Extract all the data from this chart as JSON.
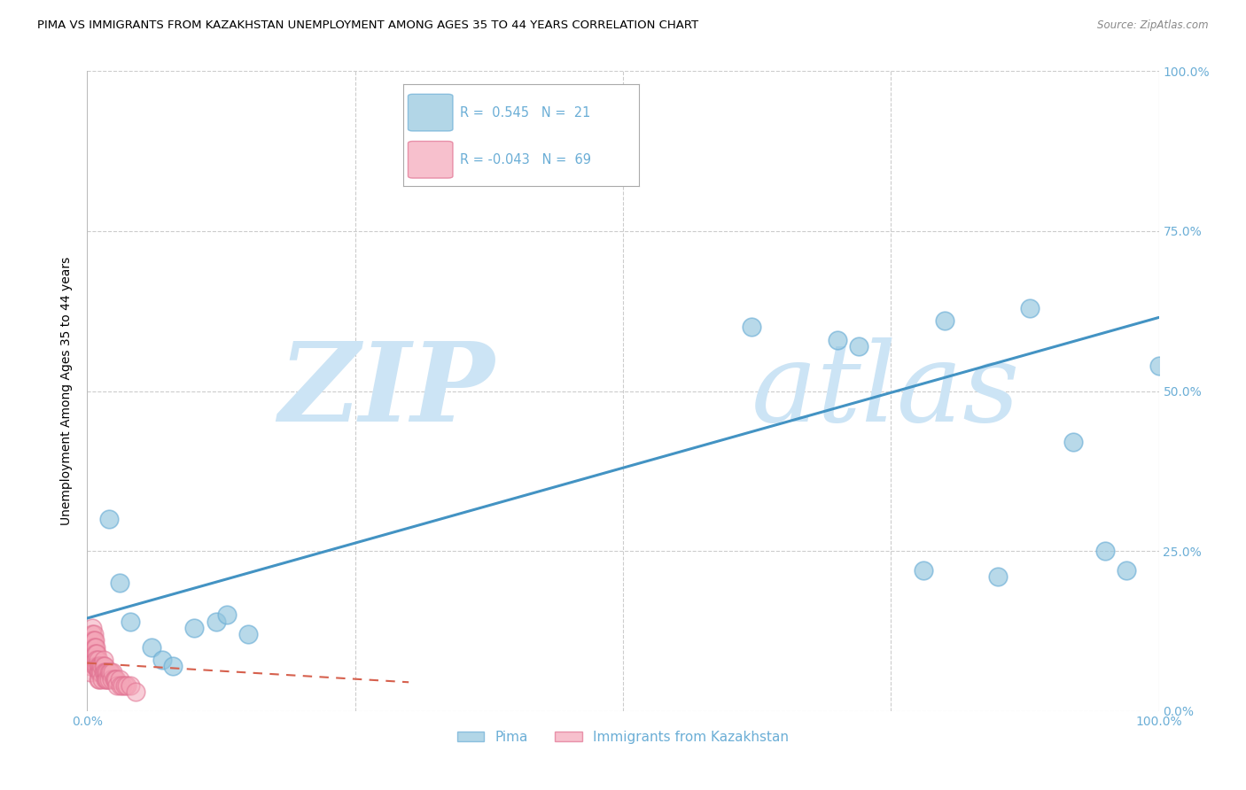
{
  "title": "PIMA VS IMMIGRANTS FROM KAZAKHSTAN UNEMPLOYMENT AMONG AGES 35 TO 44 YEARS CORRELATION CHART",
  "source": "Source: ZipAtlas.com",
  "ylabel": "Unemployment Among Ages 35 to 44 years",
  "xlim": [
    0,
    1.0
  ],
  "ylim": [
    0,
    1.0
  ],
  "grid_ticks": [
    0.25,
    0.5,
    0.75
  ],
  "xtick_ends": [
    0.0,
    1.0
  ],
  "xticklabels_ends": [
    "0.0%",
    "100.0%"
  ],
  "yticks_right": [
    0.25,
    0.5,
    0.75,
    1.0
  ],
  "yticklabels_right": [
    "25.0%",
    "50.0%",
    "75.0%",
    "100.0%"
  ],
  "pima_x": [
    0.02,
    0.03,
    0.04,
    0.06,
    0.07,
    0.08,
    0.1,
    0.12,
    0.13,
    0.15,
    0.62,
    0.7,
    0.72,
    0.78,
    0.8,
    0.85,
    0.88,
    0.92,
    0.95,
    0.97,
    1.0
  ],
  "pima_y": [
    0.3,
    0.2,
    0.14,
    0.1,
    0.08,
    0.07,
    0.13,
    0.14,
    0.15,
    0.12,
    0.6,
    0.58,
    0.57,
    0.22,
    0.61,
    0.21,
    0.63,
    0.42,
    0.25,
    0.22,
    0.54
  ],
  "kaz_x": [
    0.003,
    0.003,
    0.003,
    0.004,
    0.004,
    0.004,
    0.005,
    0.005,
    0.005,
    0.005,
    0.005,
    0.005,
    0.006,
    0.006,
    0.006,
    0.006,
    0.007,
    0.007,
    0.007,
    0.007,
    0.007,
    0.008,
    0.008,
    0.008,
    0.008,
    0.009,
    0.009,
    0.009,
    0.01,
    0.01,
    0.01,
    0.01,
    0.011,
    0.011,
    0.011,
    0.012,
    0.012,
    0.013,
    0.013,
    0.014,
    0.014,
    0.015,
    0.015,
    0.015,
    0.016,
    0.016,
    0.017,
    0.017,
    0.018,
    0.018,
    0.019,
    0.019,
    0.02,
    0.02,
    0.021,
    0.022,
    0.023,
    0.024,
    0.025,
    0.026,
    0.027,
    0.028,
    0.03,
    0.031,
    0.033,
    0.035,
    0.037,
    0.04,
    0.045
  ],
  "kaz_y": [
    0.08,
    0.07,
    0.06,
    0.1,
    0.09,
    0.08,
    0.13,
    0.12,
    0.11,
    0.1,
    0.09,
    0.08,
    0.12,
    0.11,
    0.1,
    0.09,
    0.11,
    0.1,
    0.09,
    0.08,
    0.07,
    0.1,
    0.09,
    0.08,
    0.07,
    0.09,
    0.08,
    0.07,
    0.08,
    0.07,
    0.06,
    0.05,
    0.07,
    0.06,
    0.05,
    0.07,
    0.06,
    0.07,
    0.06,
    0.07,
    0.05,
    0.08,
    0.07,
    0.06,
    0.07,
    0.06,
    0.06,
    0.05,
    0.06,
    0.05,
    0.06,
    0.05,
    0.06,
    0.05,
    0.06,
    0.06,
    0.05,
    0.06,
    0.05,
    0.05,
    0.05,
    0.04,
    0.05,
    0.04,
    0.04,
    0.04,
    0.04,
    0.04,
    0.03
  ],
  "pima_color": "#92c5de",
  "pima_edge_color": "#6baed6",
  "kaz_color": "#f4a6b8",
  "kaz_edge_color": "#e07090",
  "trend_pima_color": "#4393c3",
  "trend_kaz_color": "#d6604d",
  "trend_pima_x0": 0.0,
  "trend_pima_y0": 0.145,
  "trend_pima_x1": 1.0,
  "trend_pima_y1": 0.615,
  "trend_kaz_x0": 0.0,
  "trend_kaz_y0": 0.075,
  "trend_kaz_x1": 0.3,
  "trend_kaz_y1": 0.045,
  "legend_R_pima": "R =  0.545",
  "legend_N_pima": "N =  21",
  "legend_R_kaz": "R = -0.043",
  "legend_N_kaz": "N =  69",
  "watermark_zip": "ZIP",
  "watermark_atlas": "atlas",
  "watermark_color": "#cce4f5",
  "grid_color": "#cccccc",
  "title_fontsize": 9.5,
  "axis_label_fontsize": 10,
  "tick_fontsize": 10,
  "tick_color": "#6baed6"
}
